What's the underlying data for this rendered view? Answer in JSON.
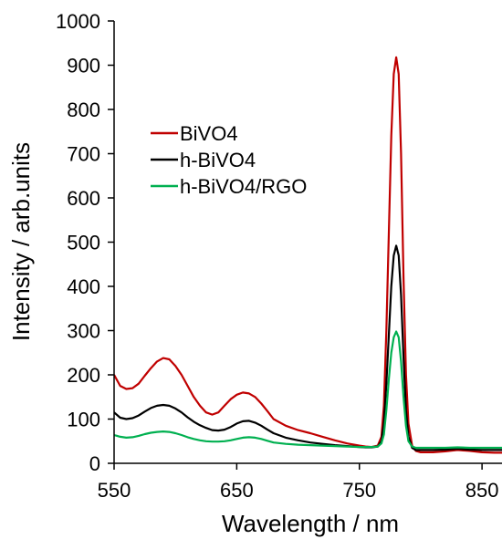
{
  "chart_data": {
    "type": "line",
    "title": "",
    "xlabel": "Wavelength / nm",
    "ylabel": "Intensity / arb.units",
    "xlim": [
      550,
      870
    ],
    "ylim": [
      0,
      1000
    ],
    "xticks": [
      550,
      650,
      750,
      850
    ],
    "yticks": [
      0,
      100,
      200,
      300,
      400,
      500,
      600,
      700,
      800,
      900,
      1000
    ],
    "grid": false,
    "legend_position": "upper-left",
    "series": [
      {
        "name": "BiVO4",
        "color": "#c00000",
        "x": [
          550,
          555,
          560,
          565,
          570,
          575,
          580,
          585,
          590,
          595,
          600,
          605,
          610,
          615,
          620,
          625,
          630,
          635,
          640,
          645,
          650,
          655,
          660,
          665,
          670,
          675,
          680,
          690,
          700,
          710,
          720,
          730,
          740,
          750,
          755,
          760,
          765,
          768,
          770,
          772,
          774,
          776,
          778,
          780,
          782,
          784,
          786,
          788,
          790,
          793,
          796,
          800,
          810,
          820,
          830,
          840,
          850,
          860,
          870
        ],
        "y": [
          200,
          175,
          168,
          170,
          180,
          198,
          215,
          230,
          238,
          235,
          220,
          200,
          175,
          150,
          130,
          115,
          110,
          115,
          130,
          145,
          155,
          160,
          158,
          150,
          135,
          118,
          100,
          85,
          75,
          68,
          60,
          52,
          45,
          40,
          38,
          37,
          40,
          60,
          130,
          300,
          520,
          740,
          880,
          918,
          880,
          700,
          420,
          200,
          90,
          40,
          28,
          25,
          25,
          27,
          30,
          28,
          25,
          24,
          24
        ]
      },
      {
        "name": "h-BiVO4",
        "color": "#000000",
        "x": [
          550,
          555,
          560,
          565,
          570,
          575,
          580,
          585,
          590,
          595,
          600,
          605,
          610,
          615,
          620,
          625,
          630,
          635,
          640,
          645,
          650,
          655,
          660,
          665,
          670,
          675,
          680,
          690,
          700,
          710,
          720,
          730,
          740,
          750,
          755,
          760,
          765,
          768,
          770,
          772,
          774,
          776,
          778,
          780,
          782,
          784,
          786,
          788,
          790,
          793,
          796,
          800,
          810,
          820,
          830,
          840,
          850,
          860,
          870
        ],
        "y": [
          115,
          103,
          100,
          102,
          108,
          117,
          125,
          130,
          132,
          130,
          124,
          115,
          104,
          94,
          86,
          80,
          75,
          74,
          76,
          82,
          90,
          95,
          96,
          92,
          85,
          76,
          68,
          58,
          52,
          47,
          44,
          41,
          39,
          37,
          36,
          36,
          38,
          50,
          90,
          180,
          290,
          400,
          470,
          492,
          470,
          380,
          240,
          120,
          60,
          35,
          30,
          30,
          30,
          31,
          33,
          31,
          30,
          30,
          30
        ]
      },
      {
        "name": "h-BiVO4/RGO",
        "color": "#00b050",
        "x": [
          550,
          555,
          560,
          565,
          570,
          575,
          580,
          585,
          590,
          595,
          600,
          605,
          610,
          615,
          620,
          625,
          630,
          635,
          640,
          645,
          650,
          655,
          660,
          665,
          670,
          675,
          680,
          690,
          700,
          710,
          720,
          730,
          740,
          750,
          755,
          760,
          765,
          768,
          770,
          772,
          774,
          776,
          778,
          780,
          782,
          784,
          786,
          788,
          790,
          793,
          796,
          800,
          810,
          820,
          830,
          840,
          850,
          860,
          870
        ],
        "y": [
          64,
          60,
          58,
          59,
          62,
          66,
          69,
          71,
          72,
          71,
          68,
          64,
          59,
          55,
          52,
          50,
          49,
          49,
          50,
          52,
          55,
          58,
          59,
          58,
          55,
          51,
          47,
          44,
          42,
          41,
          40,
          39,
          38,
          37,
          37,
          37,
          38,
          45,
          65,
          120,
          190,
          250,
          285,
          298,
          285,
          230,
          150,
          85,
          50,
          38,
          35,
          35,
          35,
          35,
          36,
          35,
          35,
          35,
          35
        ]
      }
    ]
  }
}
